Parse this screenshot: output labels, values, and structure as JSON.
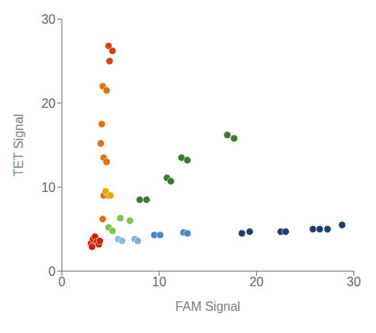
{
  "chart_data": {
    "type": "scatter",
    "xlabel": "FAM Signal",
    "ylabel": "TET Signal",
    "xlim": [
      0,
      30
    ],
    "ylim": [
      0,
      30
    ],
    "xticks": [
      0,
      10,
      20,
      30
    ],
    "yticks": [
      0,
      10,
      20,
      30
    ],
    "grid": false,
    "series": [
      {
        "color": "#cc2200",
        "x": [
          3.0,
          3.2,
          3.4,
          3.6,
          3.8,
          3.9,
          3.1
        ],
        "values": [
          3.3,
          3.8,
          4.1,
          3.5,
          3.2,
          3.6,
          2.9
        ]
      },
      {
        "color": "#d94010",
        "x": [
          4.8,
          5.2,
          4.9
        ],
        "values": [
          26.8,
          26.2,
          25.0
        ]
      },
      {
        "color": "#e07010",
        "x": [
          4.2,
          4.6,
          4.1,
          4.0,
          4.3,
          4.6,
          4.3,
          4.8
        ],
        "values": [
          22.0,
          21.5,
          17.5,
          15.2,
          13.5,
          13.0,
          9.0,
          9.0
        ]
      },
      {
        "color": "#e8a800",
        "x": [
          4.5,
          5.0
        ],
        "values": [
          9.5,
          9.0
        ]
      },
      {
        "color": "#e07010",
        "x": [
          4.2
        ],
        "values": [
          6.2
        ]
      },
      {
        "color": "#3a7a30",
        "x": [
          8.0,
          8.7,
          10.8,
          11.2,
          12.3,
          12.9,
          17.0,
          17.7
        ],
        "values": [
          8.5,
          8.5,
          11.1,
          10.7,
          13.5,
          13.2,
          16.2,
          15.8
        ]
      },
      {
        "color": "#78c850",
        "x": [
          6.0,
          7.0
        ],
        "values": [
          6.3,
          6.0
        ]
      },
      {
        "color": "#78c850",
        "x": [
          4.8,
          5.2
        ],
        "values": [
          5.2,
          4.8
        ]
      },
      {
        "color": "#4488cc",
        "x": [
          9.5,
          10.1,
          12.5,
          12.9
        ],
        "values": [
          4.3,
          4.3,
          4.6,
          4.5
        ]
      },
      {
        "color": "#88bbdd",
        "x": [
          5.8,
          6.2
        ],
        "values": [
          3.8,
          3.6
        ]
      },
      {
        "color": "#7ab0d0",
        "x": [
          7.5,
          7.8
        ],
        "values": [
          3.8,
          3.6
        ]
      },
      {
        "color": "#1c3f6e",
        "x": [
          18.5,
          19.3,
          22.5,
          23.0,
          25.8,
          26.5,
          27.3,
          28.8
        ],
        "values": [
          4.5,
          4.7,
          4.7,
          4.7,
          5.0,
          5.0,
          5.0,
          5.5
        ]
      }
    ]
  }
}
